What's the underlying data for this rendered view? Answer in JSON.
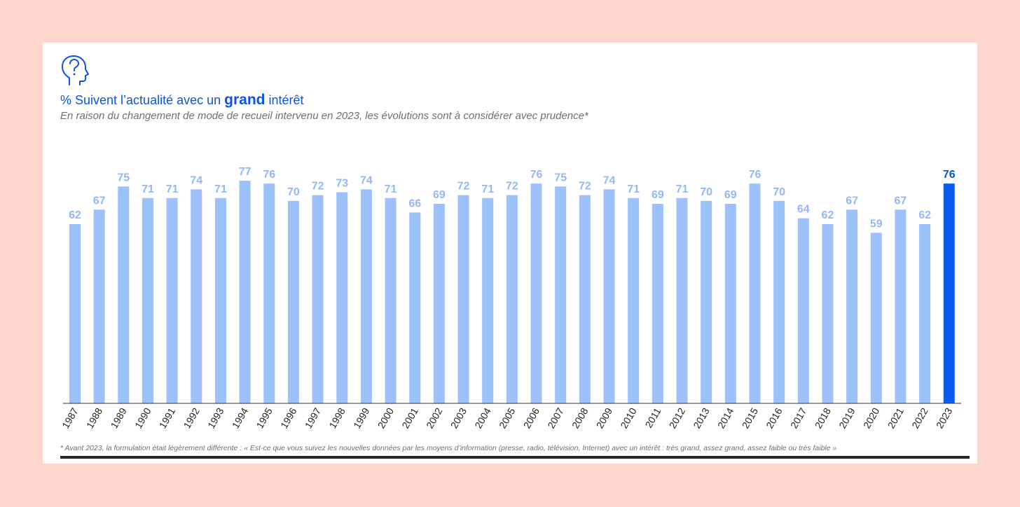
{
  "title": {
    "prefix": "% Suivent l’actualité avec un",
    "emphasis": "grand",
    "suffix": "intérêt"
  },
  "subtitle": "En raison du changement de mode de recueil intervenu en 2023, les évolutions sont à considérer avec prudence*",
  "footnote": "* Avant 2023, la formulation était légèrement différente :  « Est-ce que vous suivez les nouvelles données par les moyens d’information (presse, radio, télévision, Internet) avec un intérêt : très grand, assez grand, assez faible ou très faible »",
  "icon": "head-question-icon",
  "colors": {
    "accent": "#0a54e6",
    "bar": "#9dc1fb",
    "bar_highlight": "#0a5cf0",
    "label": "#94b8f5",
    "label_highlight": "#0a4fdd",
    "background": "#ffd6ce"
  },
  "chart_data": {
    "type": "bar",
    "categories": [
      "1987",
      "1988",
      "1989",
      "1990",
      "1991",
      "1992",
      "1993",
      "1994",
      "1995",
      "1996",
      "1997",
      "1998",
      "1999",
      "2000",
      "2001",
      "2002",
      "2003",
      "2004",
      "2005",
      "2006",
      "2007",
      "2008",
      "2009",
      "2010",
      "2011",
      "2012",
      "2013",
      "2014",
      "2015",
      "2016",
      "2017",
      "2018",
      "2019",
      "2020",
      "2021",
      "2022",
      "2023"
    ],
    "values": [
      62,
      67,
      75,
      71,
      71,
      74,
      71,
      77,
      76,
      70,
      72,
      73,
      74,
      71,
      66,
      69,
      72,
      71,
      72,
      76,
      75,
      72,
      74,
      71,
      69,
      71,
      70,
      69,
      76,
      70,
      64,
      62,
      67,
      59,
      67,
      62,
      76
    ],
    "highlight": "2023",
    "ylim": [
      0,
      77
    ],
    "data_labels": true,
    "grid": false,
    "legend": "none",
    "xlabel": "",
    "ylabel": ""
  }
}
